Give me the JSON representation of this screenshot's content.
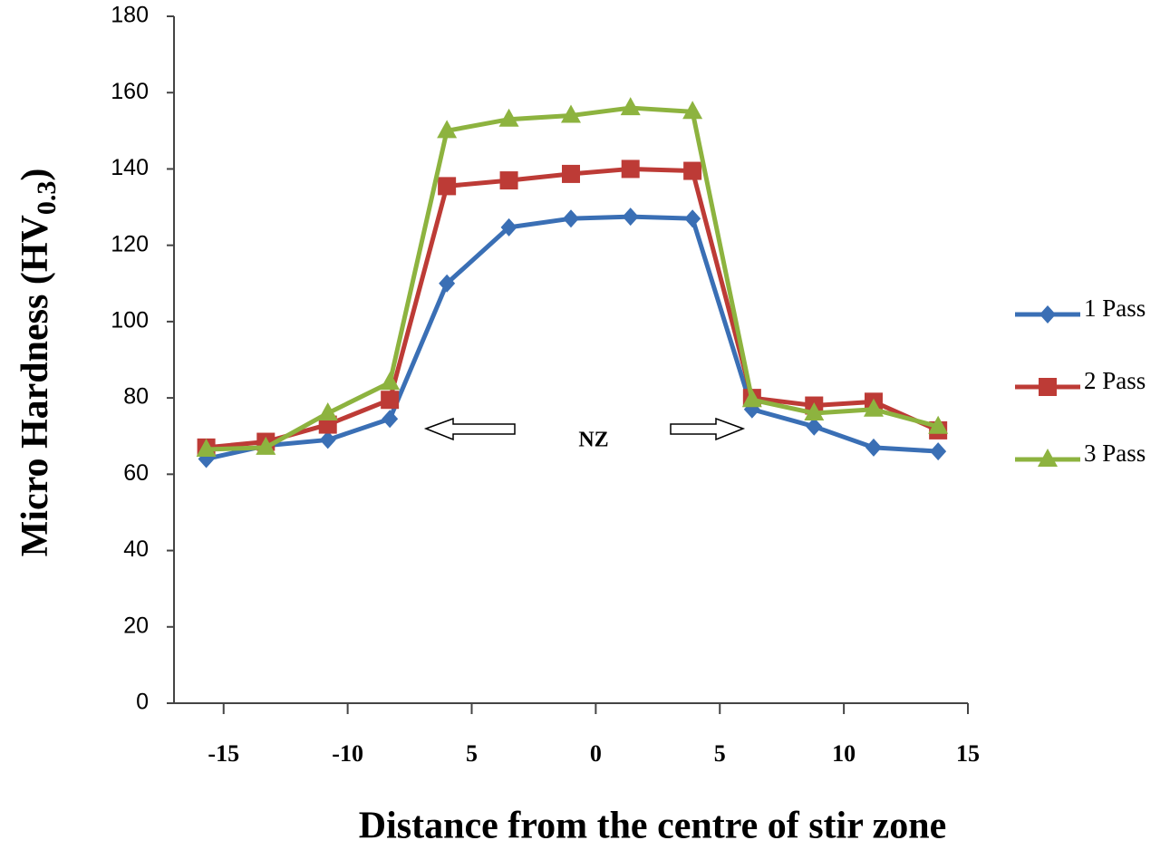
{
  "chart_data": {
    "type": "line",
    "ylabel": "Micro Hardness (HV",
    "ylabel_subscript": "0.3",
    "ylabel_suffix": ")",
    "xlabel": "Distance from the centre of stir zone",
    "annotation": "NZ",
    "x": [
      -15.7,
      -13.3,
      -10.8,
      -8.3,
      -6,
      -3.5,
      -1,
      1.4,
      3.9,
      6.3,
      8.8,
      11.2,
      13.8
    ],
    "series": [
      {
        "name": "1 Pass",
        "color": "#3a6fb5",
        "marker": "diamond",
        "values": [
          64,
          67.5,
          69,
          74.5,
          110,
          124.7,
          127,
          127.5,
          127,
          77,
          72.5,
          67,
          66
        ]
      },
      {
        "name": "2 Pass",
        "color": "#bd3b36",
        "marker": "square",
        "values": [
          67,
          68.5,
          73,
          79.5,
          135.5,
          137,
          138.7,
          140,
          139.5,
          80,
          78,
          79,
          71.5
        ]
      },
      {
        "name": "3 Pass",
        "color": "#8db33f",
        "marker": "triangle",
        "values": [
          66.5,
          67,
          76,
          84,
          150,
          153,
          154,
          156,
          155,
          79.5,
          76,
          77,
          72.5
        ]
      }
    ],
    "xlim": [
      -17,
      15
    ],
    "xticks": [
      -15,
      -10,
      {
        "value": -5,
        "label": "5"
      },
      0,
      5,
      10,
      15
    ],
    "ylim": [
      0,
      180
    ],
    "yticks": [
      0,
      20,
      40,
      60,
      80,
      100,
      120,
      140,
      160,
      180
    ],
    "grid": false,
    "legend": "right"
  }
}
